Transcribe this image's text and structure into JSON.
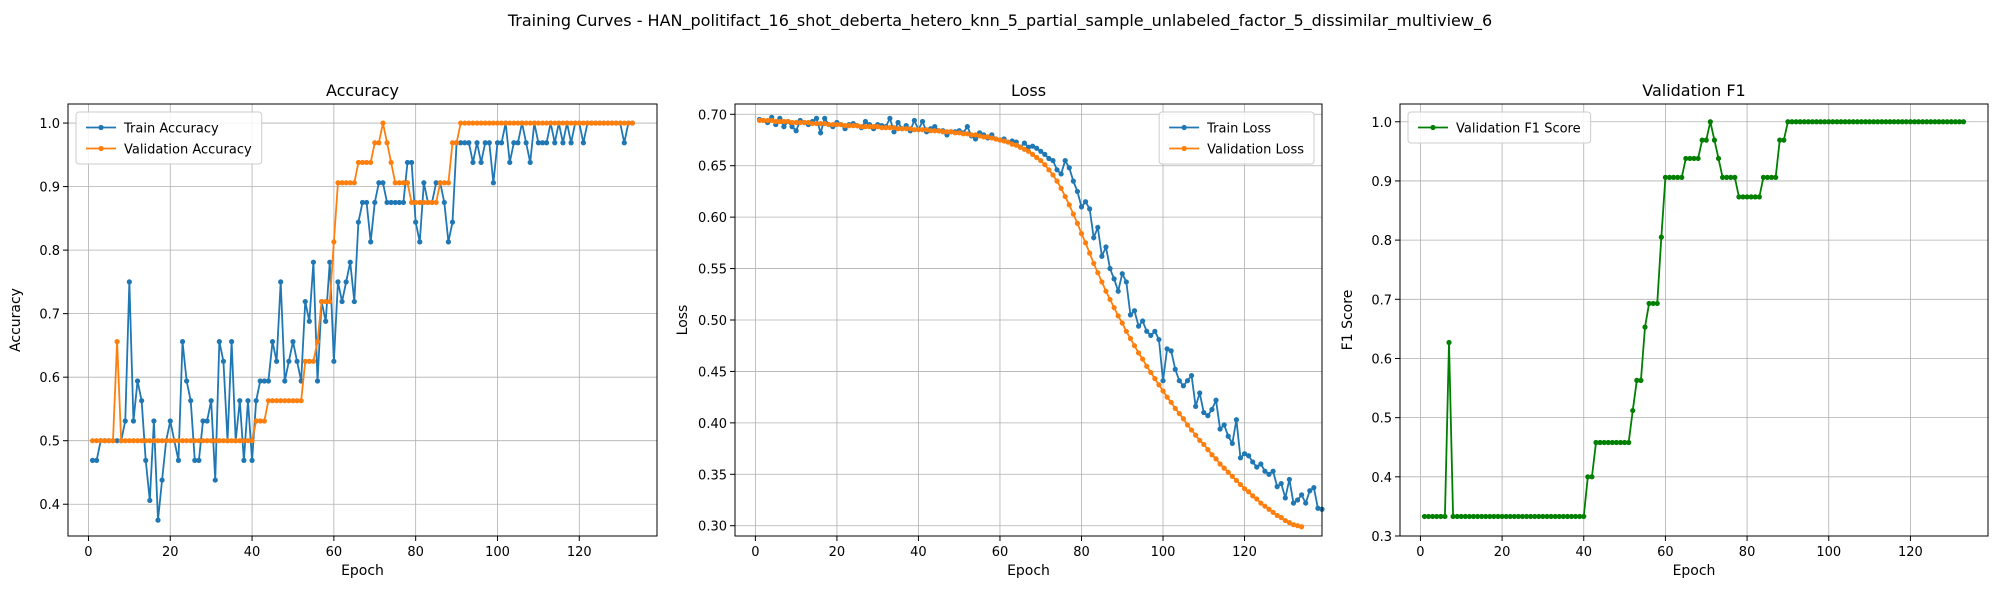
{
  "figure_title": "Training Curves - HAN_politifact_16_shot_deberta_hetero_knn_5_partial_sample_unlabeled_factor_5_dissimilar_multiview_6",
  "colors": {
    "blue": "#1f77b4",
    "orange": "#ff7f0e",
    "green": "#008000"
  },
  "chart_data": [
    {
      "type": "line",
      "title": "Accuracy",
      "xlabel": "Epoch",
      "ylabel": "Accuracy",
      "xlim": [
        -5,
        139
      ],
      "ylim": [
        0.35,
        1.03
      ],
      "xticks": [
        0,
        20,
        40,
        60,
        80,
        100,
        120
      ],
      "yticks": [
        0.4,
        0.5,
        0.6,
        0.7,
        0.8,
        0.9,
        1.0
      ],
      "ytick_labels": [
        "0.4",
        "0.5",
        "0.6",
        "0.7",
        "0.8",
        "0.9",
        "1.0"
      ],
      "grid": true,
      "legend_position": "upper-left",
      "x_start": 1,
      "series": [
        {
          "name": "Train Accuracy",
          "color": "#1f77b4",
          "values": [
            0.469,
            0.469,
            0.5,
            0.5,
            0.5,
            0.5,
            0.5,
            0.5,
            0.531,
            0.75,
            0.531,
            0.594,
            0.563,
            0.469,
            0.406,
            0.531,
            0.375,
            0.438,
            0.5,
            0.531,
            0.5,
            0.469,
            0.656,
            0.594,
            0.563,
            0.469,
            0.469,
            0.531,
            0.531,
            0.563,
            0.438,
            0.656,
            0.625,
            0.5,
            0.656,
            0.5,
            0.563,
            0.469,
            0.563,
            0.469,
            0.563,
            0.594,
            0.594,
            0.594,
            0.656,
            0.625,
            0.75,
            0.594,
            0.625,
            0.656,
            0.625,
            0.594,
            0.719,
            0.688,
            0.781,
            0.594,
            0.719,
            0.688,
            0.781,
            0.625,
            0.75,
            0.719,
            0.75,
            0.781,
            0.719,
            0.844,
            0.875,
            0.875,
            0.813,
            0.875,
            0.906,
            0.906,
            0.875,
            0.875,
            0.875,
            0.875,
            0.875,
            0.938,
            0.938,
            0.844,
            0.813,
            0.906,
            0.875,
            0.875,
            0.906,
            0.906,
            0.875,
            0.813,
            0.844,
            0.969,
            0.969,
            0.969,
            0.969,
            0.938,
            0.969,
            0.938,
            0.969,
            0.969,
            0.906,
            0.969,
            0.969,
            1.0,
            0.938,
            0.969,
            0.969,
            1.0,
            0.969,
            0.938,
            1.0,
            0.969,
            0.969,
            0.969,
            1.0,
            0.969,
            1.0,
            0.969,
            1.0,
            0.969,
            1.0,
            1.0,
            0.969,
            1.0,
            1.0,
            1.0,
            1.0,
            1.0,
            1.0,
            1.0,
            1.0,
            1.0,
            0.969,
            1.0,
            1.0
          ]
        },
        {
          "name": "Validation Accuracy",
          "color": "#ff7f0e",
          "values": [
            0.5,
            0.5,
            0.5,
            0.5,
            0.5,
            0.5,
            0.656,
            0.5,
            0.5,
            0.5,
            0.5,
            0.5,
            0.5,
            0.5,
            0.5,
            0.5,
            0.5,
            0.5,
            0.5,
            0.5,
            0.5,
            0.5,
            0.5,
            0.5,
            0.5,
            0.5,
            0.5,
            0.5,
            0.5,
            0.5,
            0.5,
            0.5,
            0.5,
            0.5,
            0.5,
            0.5,
            0.5,
            0.5,
            0.5,
            0.5,
            0.531,
            0.531,
            0.531,
            0.563,
            0.563,
            0.563,
            0.563,
            0.563,
            0.563,
            0.563,
            0.563,
            0.563,
            0.625,
            0.625,
            0.625,
            0.656,
            0.719,
            0.719,
            0.719,
            0.813,
            0.906,
            0.906,
            0.906,
            0.906,
            0.906,
            0.938,
            0.938,
            0.938,
            0.938,
            0.969,
            0.969,
            1.0,
            0.969,
            0.938,
            0.906,
            0.906,
            0.906,
            0.906,
            0.875,
            0.875,
            0.875,
            0.875,
            0.875,
            0.875,
            0.875,
            0.906,
            0.906,
            0.906,
            0.969,
            0.969,
            1.0,
            1.0,
            1.0,
            1.0,
            1.0,
            1.0,
            1.0,
            1.0,
            1.0,
            1.0,
            1.0,
            1.0,
            1.0,
            1.0,
            1.0,
            1.0,
            1.0,
            1.0,
            1.0,
            1.0,
            1.0,
            1.0,
            1.0,
            1.0,
            1.0,
            1.0,
            1.0,
            1.0,
            1.0,
            1.0,
            1.0,
            1.0,
            1.0,
            1.0,
            1.0,
            1.0,
            1.0,
            1.0,
            1.0,
            1.0,
            1.0,
            1.0,
            1.0
          ]
        }
      ]
    },
    {
      "type": "line",
      "title": "Loss",
      "xlabel": "Epoch",
      "ylabel": "Loss",
      "xlim": [
        -5,
        139
      ],
      "ylim": [
        0.29,
        0.71
      ],
      "xticks": [
        0,
        20,
        40,
        60,
        80,
        100,
        120
      ],
      "yticks": [
        0.3,
        0.35,
        0.4,
        0.45,
        0.5,
        0.55,
        0.6,
        0.65,
        0.7
      ],
      "ytick_labels": [
        "0.30",
        "0.35",
        "0.40",
        "0.45",
        "0.50",
        "0.55",
        "0.60",
        "0.65",
        "0.70"
      ],
      "grid": true,
      "legend_position": "upper-right",
      "x_start": 1,
      "series": [
        {
          "name": "Train Loss",
          "color": "#1f77b4",
          "values": [
            0.695,
            0.694,
            0.692,
            0.697,
            0.69,
            0.696,
            0.688,
            0.693,
            0.688,
            0.684,
            0.694,
            0.692,
            0.69,
            0.693,
            0.696,
            0.682,
            0.696,
            0.69,
            0.688,
            0.692,
            0.69,
            0.686,
            0.69,
            0.691,
            0.689,
            0.687,
            0.693,
            0.69,
            0.686,
            0.69,
            0.689,
            0.688,
            0.696,
            0.683,
            0.692,
            0.686,
            0.689,
            0.684,
            0.694,
            0.685,
            0.693,
            0.683,
            0.686,
            0.688,
            0.684,
            0.684,
            0.68,
            0.683,
            0.683,
            0.684,
            0.682,
            0.688,
            0.679,
            0.676,
            0.682,
            0.68,
            0.677,
            0.68,
            0.676,
            0.675,
            0.676,
            0.673,
            0.674,
            0.673,
            0.668,
            0.672,
            0.668,
            0.669,
            0.667,
            0.664,
            0.661,
            0.657,
            0.655,
            0.646,
            0.642,
            0.655,
            0.648,
            0.635,
            0.625,
            0.61,
            0.615,
            0.608,
            0.58,
            0.59,
            0.562,
            0.571,
            0.55,
            0.54,
            0.528,
            0.545,
            0.537,
            0.505,
            0.509,
            0.494,
            0.499,
            0.489,
            0.485,
            0.489,
            0.481,
            0.441,
            0.472,
            0.47,
            0.452,
            0.441,
            0.436,
            0.441,
            0.446,
            0.416,
            0.429,
            0.41,
            0.407,
            0.413,
            0.422,
            0.394,
            0.398,
            0.387,
            0.38,
            0.403,
            0.366,
            0.37,
            0.368,
            0.362,
            0.357,
            0.36,
            0.353,
            0.35,
            0.353,
            0.338,
            0.341,
            0.327,
            0.345,
            0.322,
            0.325,
            0.33,
            0.322,
            0.334,
            0.337,
            0.317,
            0.316
          ]
        },
        {
          "name": "Validation Loss",
          "color": "#ff7f0e",
          "values": [
            0.694,
            0.694,
            0.694,
            0.694,
            0.693,
            0.693,
            0.693,
            0.693,
            0.692,
            0.692,
            0.692,
            0.692,
            0.692,
            0.691,
            0.691,
            0.691,
            0.691,
            0.69,
            0.69,
            0.69,
            0.69,
            0.689,
            0.689,
            0.689,
            0.689,
            0.688,
            0.688,
            0.688,
            0.688,
            0.688,
            0.687,
            0.687,
            0.687,
            0.687,
            0.686,
            0.686,
            0.686,
            0.686,
            0.685,
            0.685,
            0.685,
            0.685,
            0.684,
            0.684,
            0.684,
            0.683,
            0.683,
            0.683,
            0.682,
            0.682,
            0.681,
            0.681,
            0.68,
            0.68,
            0.679,
            0.678,
            0.678,
            0.677,
            0.676,
            0.675,
            0.674,
            0.673,
            0.671,
            0.67,
            0.668,
            0.666,
            0.664,
            0.661,
            0.658,
            0.655,
            0.651,
            0.646,
            0.641,
            0.635,
            0.628,
            0.62,
            0.612,
            0.603,
            0.594,
            0.584,
            0.575,
            0.565,
            0.555,
            0.546,
            0.537,
            0.528,
            0.52,
            0.512,
            0.504,
            0.497,
            0.489,
            0.482,
            0.475,
            0.468,
            0.462,
            0.455,
            0.449,
            0.443,
            0.437,
            0.431,
            0.425,
            0.42,
            0.414,
            0.409,
            0.404,
            0.398,
            0.393,
            0.388,
            0.383,
            0.379,
            0.374,
            0.369,
            0.365,
            0.36,
            0.356,
            0.352,
            0.348,
            0.344,
            0.34,
            0.336,
            0.333,
            0.329,
            0.326,
            0.322,
            0.319,
            0.316,
            0.313,
            0.31,
            0.308,
            0.305,
            0.303,
            0.301,
            0.3,
            0.299
          ]
        }
      ]
    },
    {
      "type": "line",
      "title": "Validation F1",
      "xlabel": "Epoch",
      "ylabel": "F1 Score",
      "xlim": [
        -5,
        139
      ],
      "ylim": [
        0.3,
        1.03
      ],
      "xticks": [
        0,
        20,
        40,
        60,
        80,
        100,
        120
      ],
      "yticks": [
        0.3,
        0.4,
        0.5,
        0.6,
        0.7,
        0.8,
        0.9,
        1.0
      ],
      "ytick_labels": [
        "0.3",
        "0.4",
        "0.5",
        "0.6",
        "0.7",
        "0.8",
        "0.9",
        "1.0"
      ],
      "grid": true,
      "legend_position": "upper-left",
      "x_start": 1,
      "series": [
        {
          "name": "Validation F1 Score",
          "color": "#008000",
          "values": [
            0.333,
            0.333,
            0.333,
            0.333,
            0.333,
            0.333,
            0.627,
            0.333,
            0.333,
            0.333,
            0.333,
            0.333,
            0.333,
            0.333,
            0.333,
            0.333,
            0.333,
            0.333,
            0.333,
            0.333,
            0.333,
            0.333,
            0.333,
            0.333,
            0.333,
            0.333,
            0.333,
            0.333,
            0.333,
            0.333,
            0.333,
            0.333,
            0.333,
            0.333,
            0.333,
            0.333,
            0.333,
            0.333,
            0.333,
            0.333,
            0.4,
            0.4,
            0.458,
            0.458,
            0.458,
            0.458,
            0.458,
            0.458,
            0.458,
            0.458,
            0.458,
            0.512,
            0.563,
            0.563,
            0.653,
            0.693,
            0.693,
            0.693,
            0.805,
            0.906,
            0.906,
            0.906,
            0.906,
            0.906,
            0.938,
            0.938,
            0.938,
            0.938,
            0.969,
            0.969,
            1.0,
            0.969,
            0.938,
            0.906,
            0.906,
            0.906,
            0.906,
            0.873,
            0.873,
            0.873,
            0.873,
            0.873,
            0.873,
            0.906,
            0.906,
            0.906,
            0.906,
            0.969,
            0.969,
            1.0,
            1.0,
            1.0,
            1.0,
            1.0,
            1.0,
            1.0,
            1.0,
            1.0,
            1.0,
            1.0,
            1.0,
            1.0,
            1.0,
            1.0,
            1.0,
            1.0,
            1.0,
            1.0,
            1.0,
            1.0,
            1.0,
            1.0,
            1.0,
            1.0,
            1.0,
            1.0,
            1.0,
            1.0,
            1.0,
            1.0,
            1.0,
            1.0,
            1.0,
            1.0,
            1.0,
            1.0,
            1.0,
            1.0,
            1.0,
            1.0,
            1.0,
            1.0,
            1.0
          ]
        }
      ]
    }
  ]
}
